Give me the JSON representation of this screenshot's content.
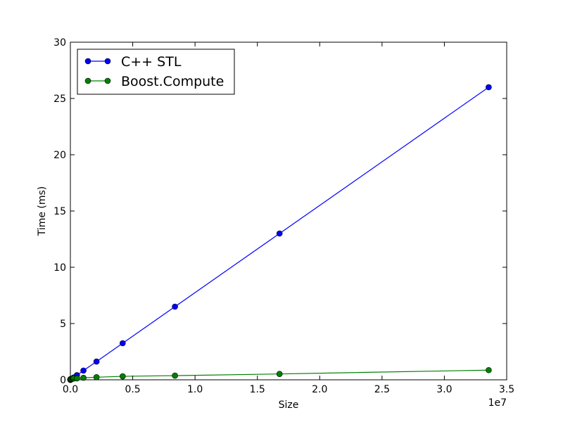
{
  "chart_data": {
    "type": "line",
    "xlabel": "Size",
    "ylabel": "Time (ms)",
    "x_offset_label": "1e7",
    "xlim": [
      0,
      35000000
    ],
    "ylim": [
      0,
      30
    ],
    "x_ticks": [
      0,
      5000000,
      10000000,
      15000000,
      20000000,
      25000000,
      30000000,
      35000000
    ],
    "x_tick_labels": [
      "0.0",
      "0.5",
      "1.0",
      "1.5",
      "2.0",
      "2.5",
      "3.0",
      "3.5"
    ],
    "y_ticks": [
      0,
      5,
      10,
      15,
      20,
      25,
      30
    ],
    "y_tick_labels": [
      "0",
      "5",
      "10",
      "15",
      "20",
      "25",
      "30"
    ],
    "grid": false,
    "legend_position": "top-left",
    "series": [
      {
        "name": "C++ STL",
        "color": "#0000ff",
        "x": [
          1024,
          2048,
          4096,
          8192,
          16384,
          32768,
          65536,
          131072,
          262144,
          524288,
          1048576,
          2097152,
          4194304,
          8388608,
          16777216,
          33554432
        ],
        "y": [
          0.0,
          0.0,
          0.0,
          0.01,
          0.01,
          0.03,
          0.05,
          0.1,
          0.2,
          0.41,
          0.82,
          1.62,
          3.25,
          6.5,
          13.0,
          26.0
        ]
      },
      {
        "name": "Boost.Compute",
        "color": "#008000",
        "x": [
          1024,
          2048,
          4096,
          8192,
          16384,
          32768,
          65536,
          131072,
          262144,
          524288,
          1048576,
          2097152,
          4194304,
          8388608,
          16777216,
          33554432
        ],
        "y": [
          0.02,
          0.03,
          0.04,
          0.05,
          0.06,
          0.07,
          0.08,
          0.09,
          0.11,
          0.13,
          0.18,
          0.23,
          0.31,
          0.37,
          0.52,
          0.86
        ]
      }
    ]
  }
}
